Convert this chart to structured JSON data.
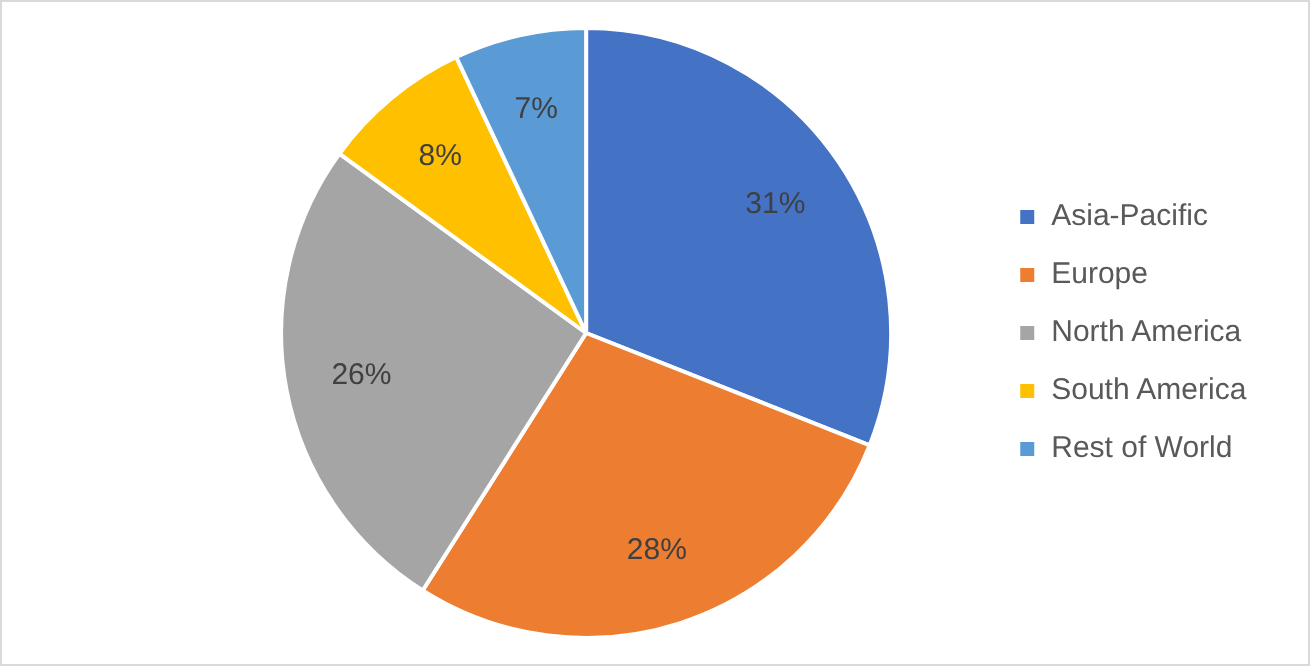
{
  "chart_data": {
    "type": "pie",
    "categories": [
      "Asia-Pacific",
      "Europe",
      "North America",
      "South America",
      "Rest of World"
    ],
    "values": [
      31,
      28,
      26,
      8,
      7
    ],
    "colors": [
      "#4472c4",
      "#ed7d31",
      "#a5a5a5",
      "#ffc000",
      "#5b9bd5"
    ],
    "value_labels": [
      "31%",
      "28%",
      "26%",
      "8%",
      "7%"
    ],
    "legend": "right"
  }
}
